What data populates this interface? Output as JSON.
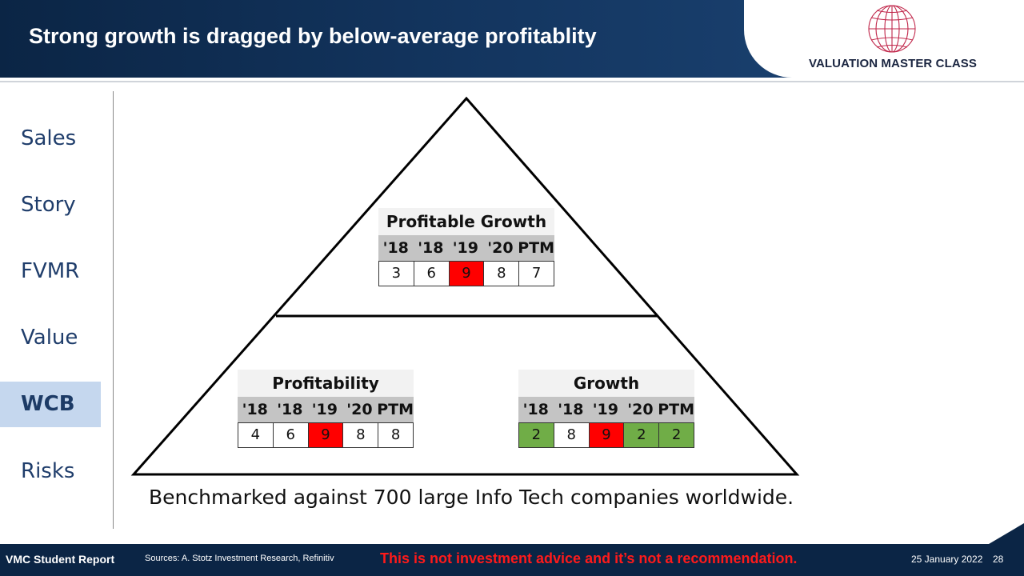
{
  "header": {
    "title": "Strong growth is dragged by below-average profitablity",
    "logo_text": "VALUATION MASTER CLASS"
  },
  "sidebar": {
    "items": [
      {
        "label": "Sales"
      },
      {
        "label": "Story"
      },
      {
        "label": "FVMR"
      },
      {
        "label": "Value"
      },
      {
        "label": "WCB",
        "active": true
      },
      {
        "label": "Risks"
      }
    ]
  },
  "tables": {
    "profitable_growth": {
      "title": "Profitable Growth",
      "headers": [
        "'18",
        "'18",
        "'19",
        "'20",
        "PTM"
      ],
      "values": [
        "3",
        "6",
        "9",
        "8",
        "7"
      ],
      "colors": [
        "white",
        "white",
        "red",
        "white",
        "white"
      ]
    },
    "profitability": {
      "title": "Profitability",
      "headers": [
        "'18",
        "'18",
        "'19",
        "'20",
        "PTM"
      ],
      "values": [
        "4",
        "6",
        "9",
        "8",
        "8"
      ],
      "colors": [
        "white",
        "white",
        "red",
        "white",
        "white"
      ]
    },
    "growth": {
      "title": "Growth",
      "headers": [
        "'18",
        "'18",
        "'19",
        "'20",
        "PTM"
      ],
      "values": [
        "2",
        "8",
        "9",
        "2",
        "2"
      ],
      "colors": [
        "green",
        "white",
        "red",
        "green",
        "green"
      ]
    }
  },
  "caption": "Benchmarked against 700 large Info Tech companies worldwide.",
  "footer": {
    "report_label": "VMC Student Report",
    "sources": "Sources: A. Stotz Investment Research, Refinitiv",
    "disclaimer": "This is not investment advice and it’s not a recommendation.",
    "date": "25 January 2022",
    "page": "28"
  },
  "colors": {
    "navy": "#0b2545",
    "red": "#ff0000",
    "green": "#70ad47",
    "active_bg": "#c5d7ee"
  }
}
